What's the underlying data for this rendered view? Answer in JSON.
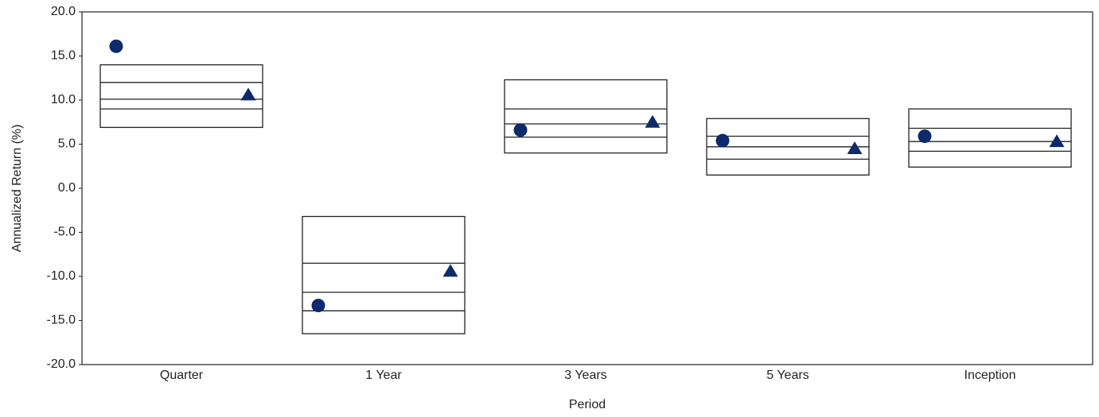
{
  "chart_data": {
    "type": "box",
    "x_label": "Period",
    "y_label": "Annualized Return (%)",
    "categories": [
      "Quarter",
      "1 Year",
      "3 Years",
      "5 Years",
      "Inception"
    ],
    "top": [
      14.0,
      -3.2,
      12.3,
      7.9,
      9.0
    ],
    "upper": [
      12.0,
      -8.5,
      9.0,
      5.9,
      6.8
    ],
    "median": [
      10.1,
      -11.8,
      7.3,
      4.7,
      5.3
    ],
    "lower": [
      9.0,
      -13.9,
      5.8,
      3.3,
      4.2
    ],
    "bottom": [
      6.9,
      -16.5,
      4.0,
      1.5,
      2.4
    ],
    "box_color": "#222222",
    "series": [
      {
        "marker": "circle",
        "color": "#0d2a6b",
        "values": [
          16.1,
          -13.3,
          6.6,
          5.4,
          5.9
        ]
      },
      {
        "marker": "triangle",
        "color": "#0d2a6b",
        "values": [
          10.6,
          -9.4,
          7.5,
          4.5,
          5.3
        ]
      }
    ],
    "ylim": [
      -20,
      20
    ],
    "yticks": [
      {
        "value": 20,
        "label": "20.0"
      },
      {
        "value": 15,
        "label": "15.0"
      },
      {
        "value": 10,
        "label": "10.0"
      },
      {
        "value": 5,
        "label": "5.0"
      },
      {
        "value": 0,
        "label": "0.0"
      },
      {
        "value": -5,
        "label": "-5.0"
      },
      {
        "value": -10,
        "label": "-10.0"
      },
      {
        "value": -15,
        "label": "-15.0"
      },
      {
        "value": -20,
        "label": "-20.0"
      }
    ],
    "grid": false
  }
}
